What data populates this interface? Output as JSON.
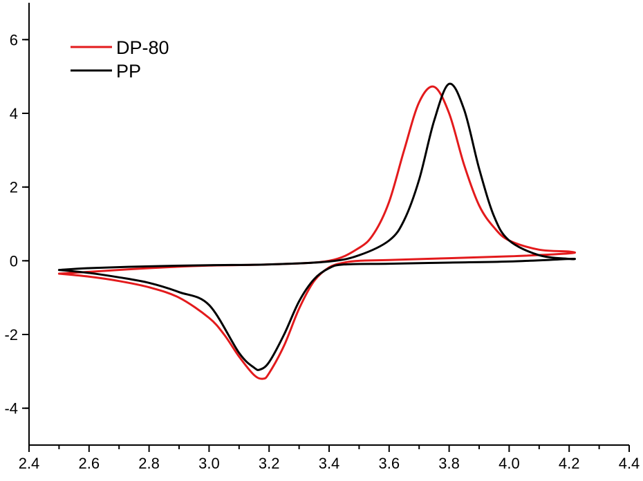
{
  "chart_data": {
    "type": "line",
    "title": "",
    "xlabel": "",
    "ylabel": "",
    "xlim": [
      2.4,
      4.4
    ],
    "ylim": [
      -5,
      7
    ],
    "x_ticks": [
      2.4,
      2.6,
      2.8,
      3.0,
      3.2,
      3.4,
      3.6,
      3.8,
      4.0,
      4.2,
      4.4
    ],
    "x_tick_labels": [
      "2.4",
      "2.6",
      "2.8",
      "3.0",
      "3.2",
      "3.4",
      "3.6",
      "3.8",
      "4.0",
      "4.2",
      "4.4"
    ],
    "y_ticks": [
      -4,
      -2,
      0,
      2,
      4,
      6
    ],
    "y_tick_labels": [
      "-4",
      "-2",
      "0",
      "2",
      "4",
      "6"
    ],
    "grid": false,
    "legend": "top-left",
    "series": [
      {
        "name": "DP-80",
        "color": "#e31a1c",
        "x": [
          2.5,
          2.6,
          2.8,
          3.0,
          3.2,
          3.4,
          3.5,
          3.55,
          3.6,
          3.65,
          3.7,
          3.75,
          3.8,
          3.85,
          3.9,
          3.95,
          4.0,
          4.1,
          4.2,
          4.2,
          4.0,
          3.8,
          3.6,
          3.5,
          3.45,
          3.4,
          3.35,
          3.3,
          3.25,
          3.2,
          3.18,
          3.15,
          3.1,
          3.05,
          3.0,
          2.9,
          2.8,
          2.7,
          2.6,
          2.5
        ],
        "y": [
          -0.35,
          -0.3,
          -0.2,
          -0.13,
          -0.1,
          0.0,
          0.35,
          0.75,
          1.6,
          3.0,
          4.3,
          4.72,
          4.0,
          2.6,
          1.5,
          0.9,
          0.55,
          0.3,
          0.25,
          0.2,
          0.12,
          0.07,
          0.02,
          0.0,
          -0.05,
          -0.18,
          -0.55,
          -1.3,
          -2.3,
          -3.05,
          -3.2,
          -3.1,
          -2.6,
          -2.0,
          -1.55,
          -1.0,
          -0.72,
          -0.55,
          -0.43,
          -0.35
        ]
      },
      {
        "name": "PP",
        "color": "#000000",
        "x": [
          2.5,
          2.6,
          2.8,
          3.0,
          3.2,
          3.4,
          3.5,
          3.6,
          3.65,
          3.7,
          3.75,
          3.8,
          3.85,
          3.9,
          3.95,
          4.0,
          4.1,
          4.2,
          4.2,
          4.0,
          3.8,
          3.6,
          3.45,
          3.4,
          3.35,
          3.3,
          3.25,
          3.2,
          3.17,
          3.15,
          3.1,
          3.0,
          2.9,
          2.8,
          2.7,
          2.6,
          2.5
        ],
        "y": [
          -0.25,
          -0.2,
          -0.15,
          -0.12,
          -0.1,
          -0.02,
          0.15,
          0.55,
          1.1,
          2.2,
          3.8,
          4.8,
          4.1,
          2.5,
          1.2,
          0.55,
          0.15,
          0.05,
          0.05,
          -0.02,
          -0.05,
          -0.08,
          -0.1,
          -0.2,
          -0.5,
          -1.1,
          -2.0,
          -2.75,
          -2.95,
          -2.9,
          -2.5,
          -1.2,
          -0.85,
          -0.6,
          -0.45,
          -0.33,
          -0.25
        ]
      }
    ]
  }
}
